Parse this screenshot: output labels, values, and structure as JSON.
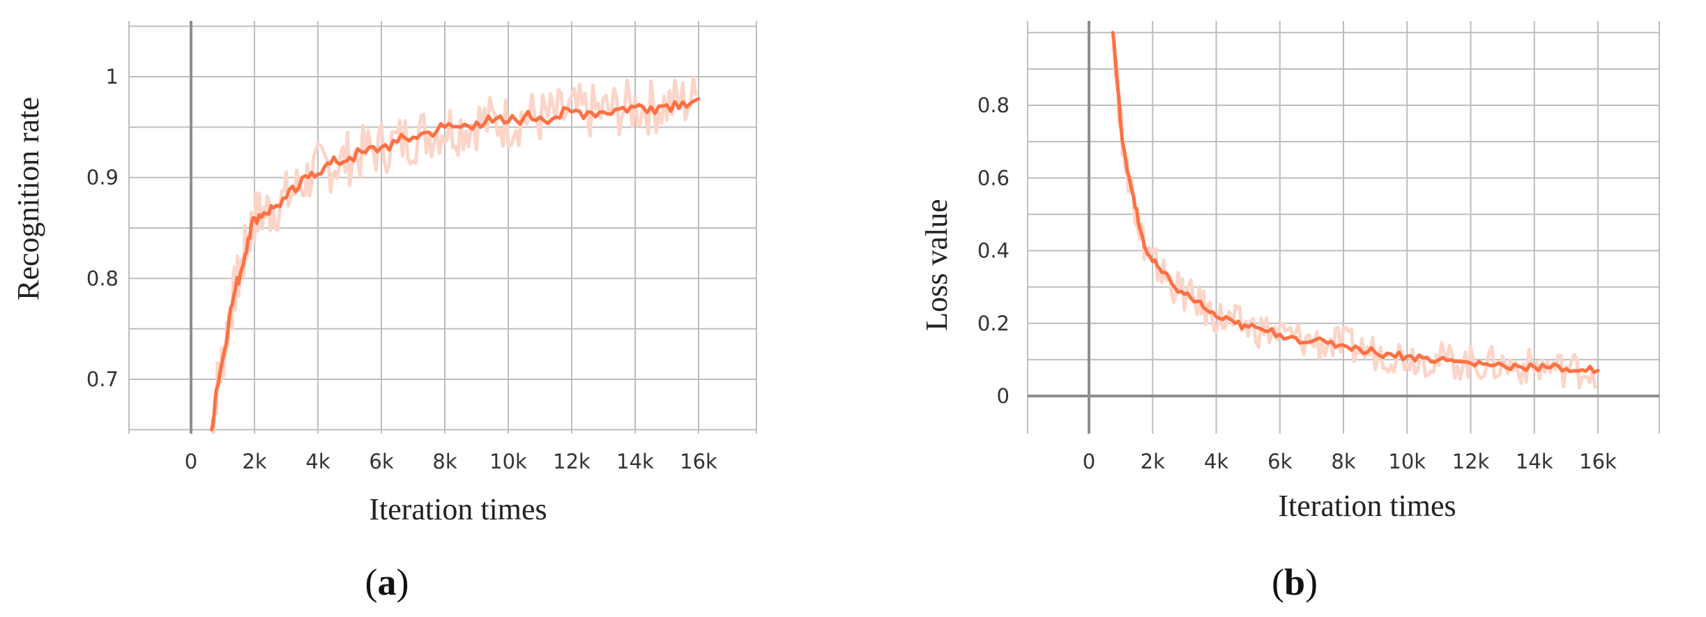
{
  "chart_data": [
    {
      "type": "line",
      "panel_label": "a",
      "xlabel": "Iteration times",
      "ylabel": "Recognition rate",
      "xlim": [
        -2000,
        18000
      ],
      "ylim": [
        0.65,
        1.04
      ],
      "x_ticks": [
        0,
        2000,
        4000,
        6000,
        8000,
        10000,
        12000,
        14000,
        16000
      ],
      "x_tick_labels": [
        "0",
        "2k",
        "4k",
        "6k",
        "8k",
        "10k",
        "12k",
        "14k",
        "16k"
      ],
      "y_ticks": [
        0.7,
        0.8,
        0.9,
        1.0
      ],
      "y_tick_labels": [
        "0.7",
        "0.8",
        "0.9",
        "1"
      ],
      "grid": true,
      "line_color": "#ff7043",
      "band_color": "#fcd5c8",
      "series": [
        {
          "x": [
            650,
            800,
            1000,
            1200,
            1400,
            1600,
            1800,
            2000,
            2300,
            2600,
            3000,
            3400,
            3800,
            4200,
            4600,
            5000,
            5500,
            6000,
            6500,
            7000,
            7500,
            8000,
            8500,
            9000,
            9500,
            10000,
            10500,
            11000,
            11500,
            12000,
            12500,
            13000,
            13500,
            14000,
            14500,
            15000,
            15500,
            16000
          ],
          "y": [
            0.65,
            0.69,
            0.72,
            0.76,
            0.79,
            0.81,
            0.84,
            0.86,
            0.865,
            0.87,
            0.88,
            0.89,
            0.905,
            0.91,
            0.915,
            0.92,
            0.925,
            0.93,
            0.935,
            0.94,
            0.945,
            0.95,
            0.95,
            0.955,
            0.955,
            0.955,
            0.96,
            0.96,
            0.96,
            0.965,
            0.965,
            0.965,
            0.968,
            0.97,
            0.97,
            0.972,
            0.975,
            0.978
          ]
        }
      ]
    },
    {
      "type": "line",
      "panel_label": "b",
      "xlabel": "Iteration times",
      "ylabel": "Loss value",
      "xlim": [
        -2000,
        18000
      ],
      "ylim": [
        -0.1,
        1.0
      ],
      "x_ticks": [
        0,
        2000,
        4000,
        6000,
        8000,
        10000,
        12000,
        14000,
        16000
      ],
      "x_tick_labels": [
        "0",
        "2k",
        "4k",
        "6k",
        "8k",
        "10k",
        "12k",
        "14k",
        "16k"
      ],
      "y_ticks": [
        0,
        0.2,
        0.4,
        0.6,
        0.8
      ],
      "y_tick_labels": [
        "0",
        "0.2",
        "0.4",
        "0.6",
        "0.8"
      ],
      "grid": true,
      "line_color": "#ff7043",
      "band_color": "#fcd5c8",
      "series": [
        {
          "x": [
            750,
            900,
            1050,
            1200,
            1400,
            1600,
            1800,
            2000,
            2300,
            2600,
            3000,
            3400,
            3800,
            4200,
            4600,
            5000,
            5500,
            6000,
            6500,
            7000,
            7500,
            8000,
            8500,
            9000,
            9500,
            10000,
            10500,
            11000,
            11500,
            12000,
            12500,
            13000,
            13500,
            14000,
            14500,
            15000,
            15500,
            16000
          ],
          "y": [
            1.0,
            0.85,
            0.7,
            0.62,
            0.55,
            0.46,
            0.4,
            0.37,
            0.34,
            0.31,
            0.28,
            0.26,
            0.23,
            0.21,
            0.2,
            0.19,
            0.18,
            0.17,
            0.16,
            0.15,
            0.145,
            0.14,
            0.13,
            0.12,
            0.115,
            0.11,
            0.105,
            0.1,
            0.095,
            0.09,
            0.088,
            0.085,
            0.082,
            0.08,
            0.078,
            0.075,
            0.072,
            0.07
          ]
        }
      ]
    }
  ]
}
